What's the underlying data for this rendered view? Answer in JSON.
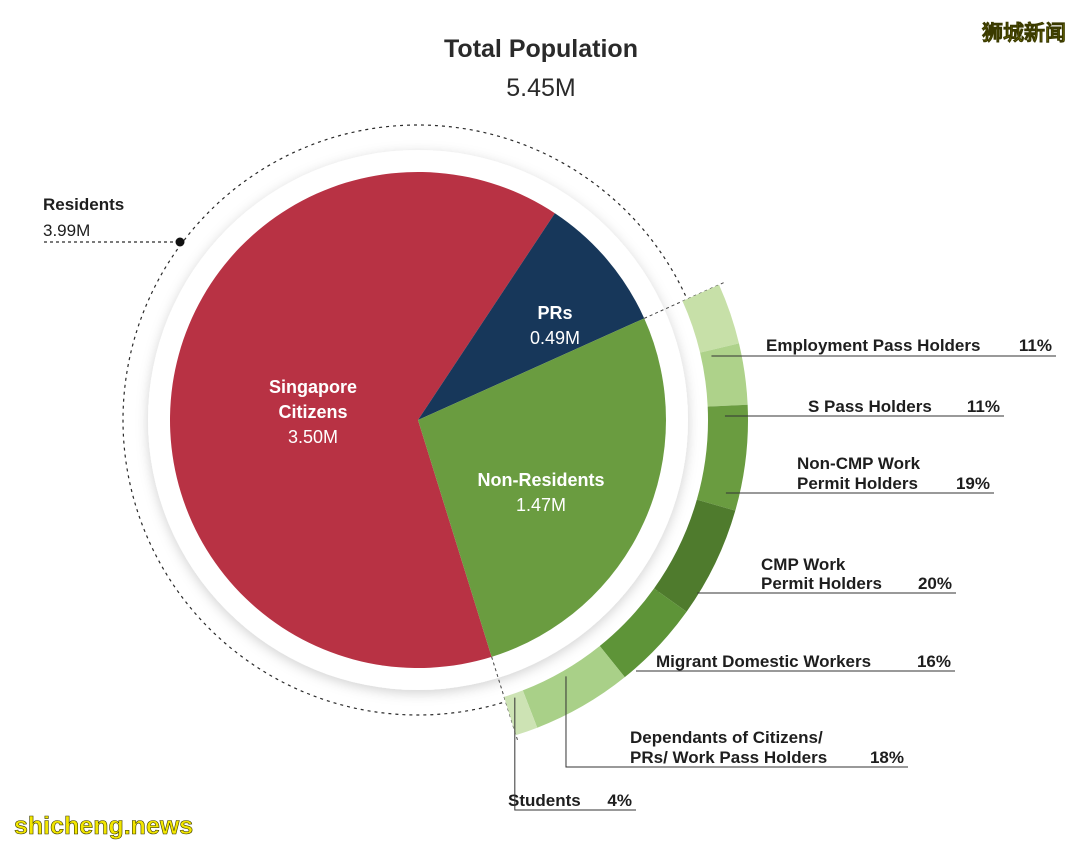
{
  "chart_data": {
    "type": "pie",
    "title": "Total Population",
    "subtitle": "5.45M",
    "residents": {
      "label": "Residents",
      "value_label": "3.99M",
      "value": 3.99
    },
    "slices": [
      {
        "name": "Singapore Citizens",
        "name_lines": [
          "Singapore",
          "Citizens"
        ],
        "value": 3.5,
        "value_label": "3.50M",
        "color": "#b83244"
      },
      {
        "name": "PRs",
        "name_lines": [
          "PRs"
        ],
        "value": 0.49,
        "value_label": "0.49M",
        "color": "#17375a"
      },
      {
        "name": "Non-Residents",
        "name_lines": [
          "Non-Residents"
        ],
        "value": 1.47,
        "value_label": "1.47M",
        "color": "#6a9c40"
      }
    ],
    "breakdown": {
      "of": "Non-Residents",
      "unit": "%",
      "items": [
        {
          "lines": [
            "Employment Pass Holders"
          ],
          "pct_label": "11%",
          "value": 11,
          "color": "#c7e0a8"
        },
        {
          "lines": [
            "S Pass Holders"
          ],
          "pct_label": "11%",
          "value": 11,
          "color": "#aed28a"
        },
        {
          "lines": [
            "Non-CMP Work",
            "Permit Holders"
          ],
          "pct_label": "19%",
          "value": 19,
          "color": "#6a9c40"
        },
        {
          "lines": [
            "CMP Work",
            "Permit Holders"
          ],
          "pct_label": "20%",
          "value": 20,
          "color": "#4f7b2d"
        },
        {
          "lines": [
            "Migrant Domestic Workers"
          ],
          "pct_label": "16%",
          "value": 16,
          "color": "#5e9438"
        },
        {
          "lines": [
            "Dependants of Citizens/",
            "PRs/ Work Pass Holders"
          ],
          "pct_label": "18%",
          "value": 18,
          "color": "#a9d088"
        },
        {
          "lines": [
            "Students"
          ],
          "pct_label": "4%",
          "value": 4,
          "color": "#cde3b4"
        }
      ]
    }
  },
  "watermark": {
    "top": "狮城新闻",
    "bottom": "shicheng.news"
  }
}
